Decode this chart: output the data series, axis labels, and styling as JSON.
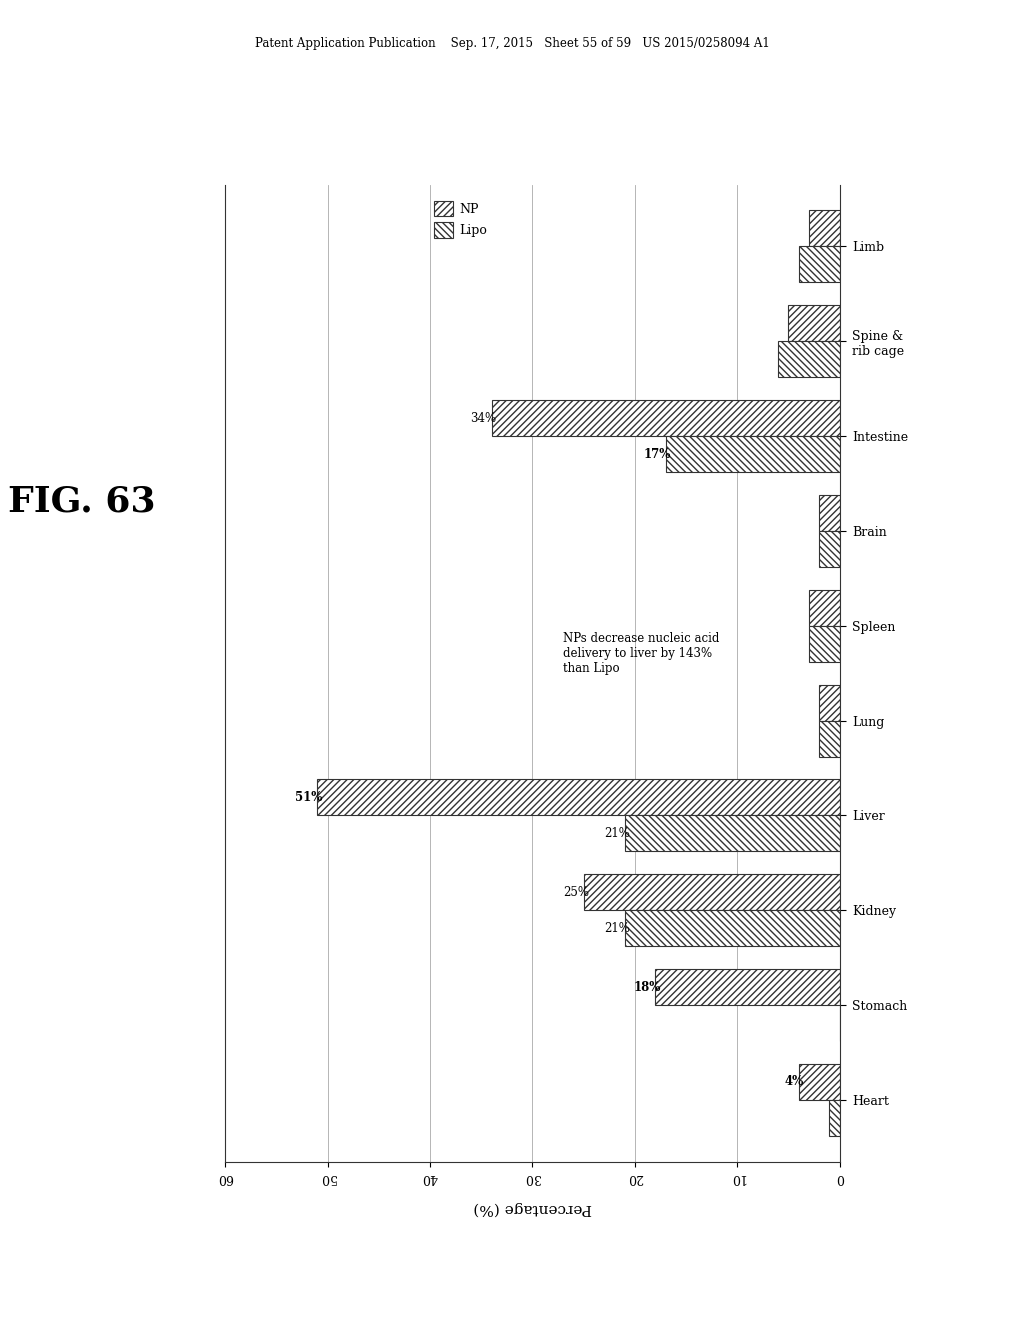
{
  "categories": [
    "Heart",
    "Stomach",
    "Kidney",
    "Liver",
    "Lung",
    "Spleen",
    "Brain",
    "Intestine",
    "Spine &\nrib cage",
    "Limb"
  ],
  "NP": [
    4,
    18,
    25,
    51,
    2,
    3,
    2,
    34,
    5,
    3
  ],
  "Lipo": [
    1,
    0,
    21,
    21,
    2,
    3,
    2,
    17,
    6,
    4
  ],
  "NP_labels": [
    "4%",
    "18%",
    "25%",
    "51%",
    "",
    "",
    "",
    "34%",
    "",
    ""
  ],
  "Lipo_labels": [
    "",
    "",
    "21%",
    "21%",
    "",
    "",
    "",
    "17%",
    "",
    ""
  ],
  "NP_bold": [
    true,
    true,
    false,
    true,
    false,
    false,
    false,
    false,
    false,
    false
  ],
  "Lipo_bold": [
    false,
    false,
    false,
    false,
    false,
    false,
    false,
    true,
    false,
    false
  ],
  "xlabel": "Percentage (%)",
  "xlim": [
    0,
    60
  ],
  "xticks": [
    0,
    10,
    20,
    30,
    40,
    50,
    60
  ],
  "title": "FIG. 63",
  "annotation_line1": "NPs decrease nucleic acid",
  "annotation_line2": "delivery to liver by 143%",
  "annotation_line3": "than Lipo",
  "header": "Patent Application Publication    Sep. 17, 2015   Sheet 55 of 59   US 2015/0258094 A1",
  "bar_width": 0.38,
  "np_hatch": "/////",
  "lipo_hatch": "\\\\\\\\\\",
  "np_color": "white",
  "lipo_color": "white",
  "np_edgecolor": "#333333",
  "lipo_edgecolor": "#333333"
}
